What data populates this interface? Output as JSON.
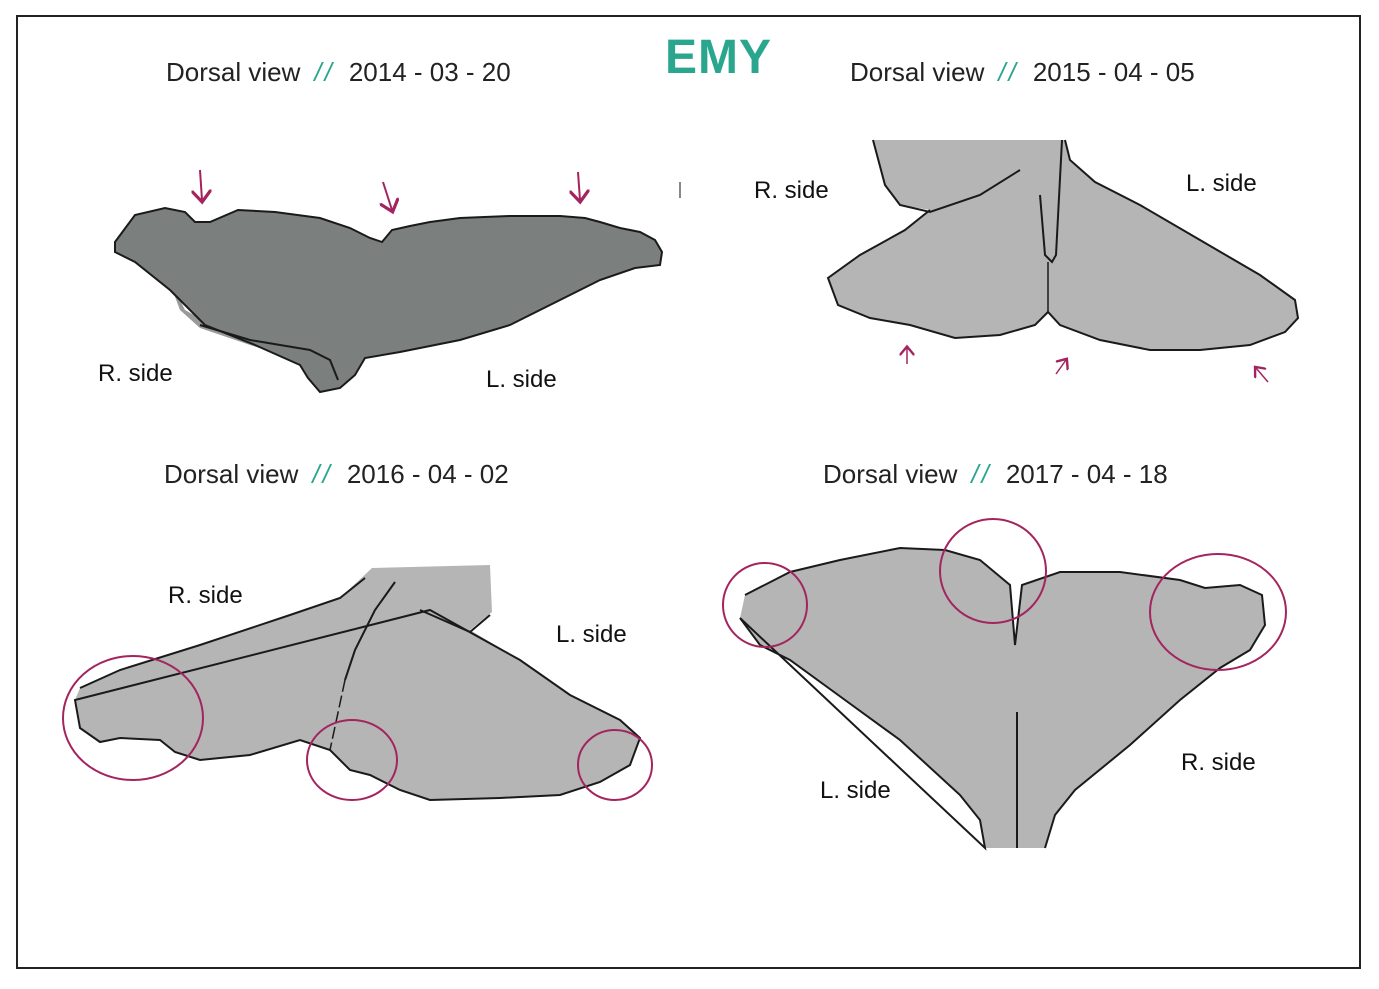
{
  "title": "EMY",
  "panels": [
    {
      "view": "Dorsal view",
      "sep": "//",
      "date": "2014 - 03 - 20",
      "right_label": "R. side",
      "left_label": "L. side"
    },
    {
      "view": "Dorsal view",
      "sep": "//",
      "date": "2015 - 04 - 05",
      "right_label": "R. side",
      "left_label": "L. side"
    },
    {
      "view": "Dorsal view",
      "sep": "//",
      "date": "2016 - 04 - 02",
      "right_label": "R. side",
      "left_label": "L. side"
    },
    {
      "view": "Dorsal view",
      "sep": "//",
      "date": "2017 - 04 - 18",
      "right_label": "R. side",
      "left_label": "L. side"
    }
  ],
  "colors": {
    "accent": "#2aa68f",
    "marker": "#a3245e",
    "fluke_dark": "#7b7f7e",
    "fluke_light": "#b5b5b5",
    "outline": "#1a1a1a"
  }
}
